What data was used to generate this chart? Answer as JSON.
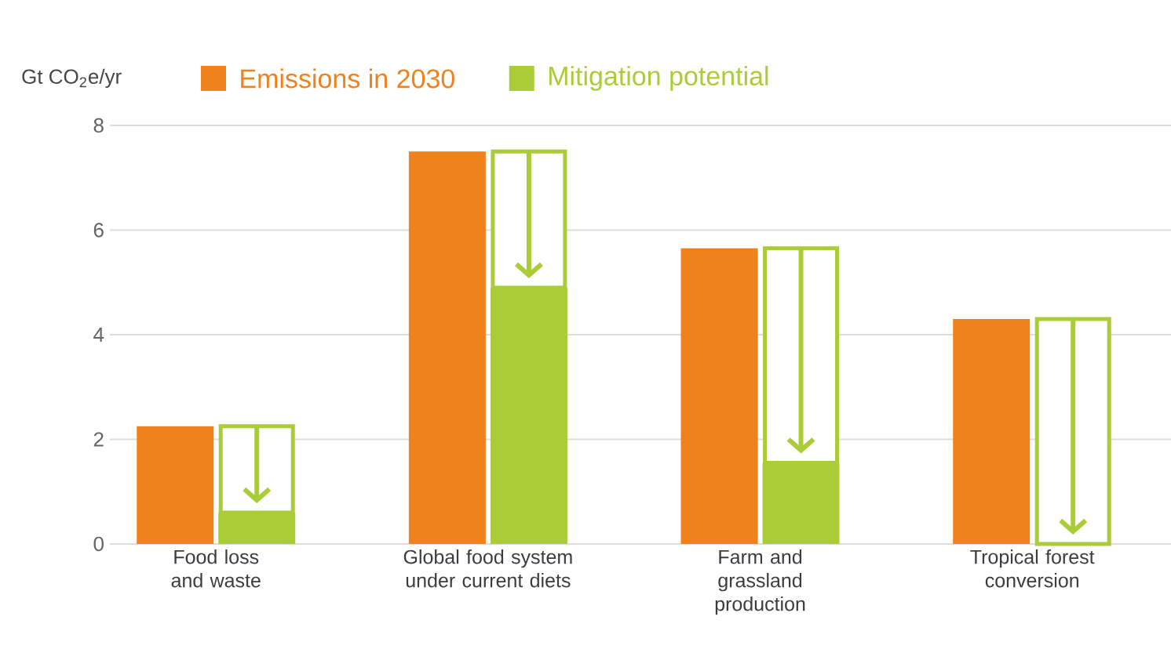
{
  "chart_data": {
    "type": "bar",
    "ylabel": "Gt CO$_{2}$e/yr",
    "categories": [
      "Food loss and waste",
      "Global food system under current diets",
      "Farm and grassland production",
      "Tropical forest conversion"
    ],
    "series": [
      {
        "name": "Emissions in 2030",
        "color": "#f0821e",
        "values": [
          2.25,
          7.5,
          5.65,
          4.3
        ]
      },
      {
        "color": "#aacd37",
        "values": [
          0.6,
          4.9,
          1.55,
          0
        ]
      },
      {
        "name": "Mitigation potential",
        "color": "#aacd37",
        "base": [
          0.6,
          4.9,
          1.55,
          0
        ],
        "values": [
          1.65,
          2.6,
          4.1,
          4.3
        ]
      }
    ],
    "ylim": [
      0,
      8
    ],
    "yticks": [
      0,
      2,
      4,
      6,
      8
    ],
    "grid": "y",
    "legend": "top"
  }
}
